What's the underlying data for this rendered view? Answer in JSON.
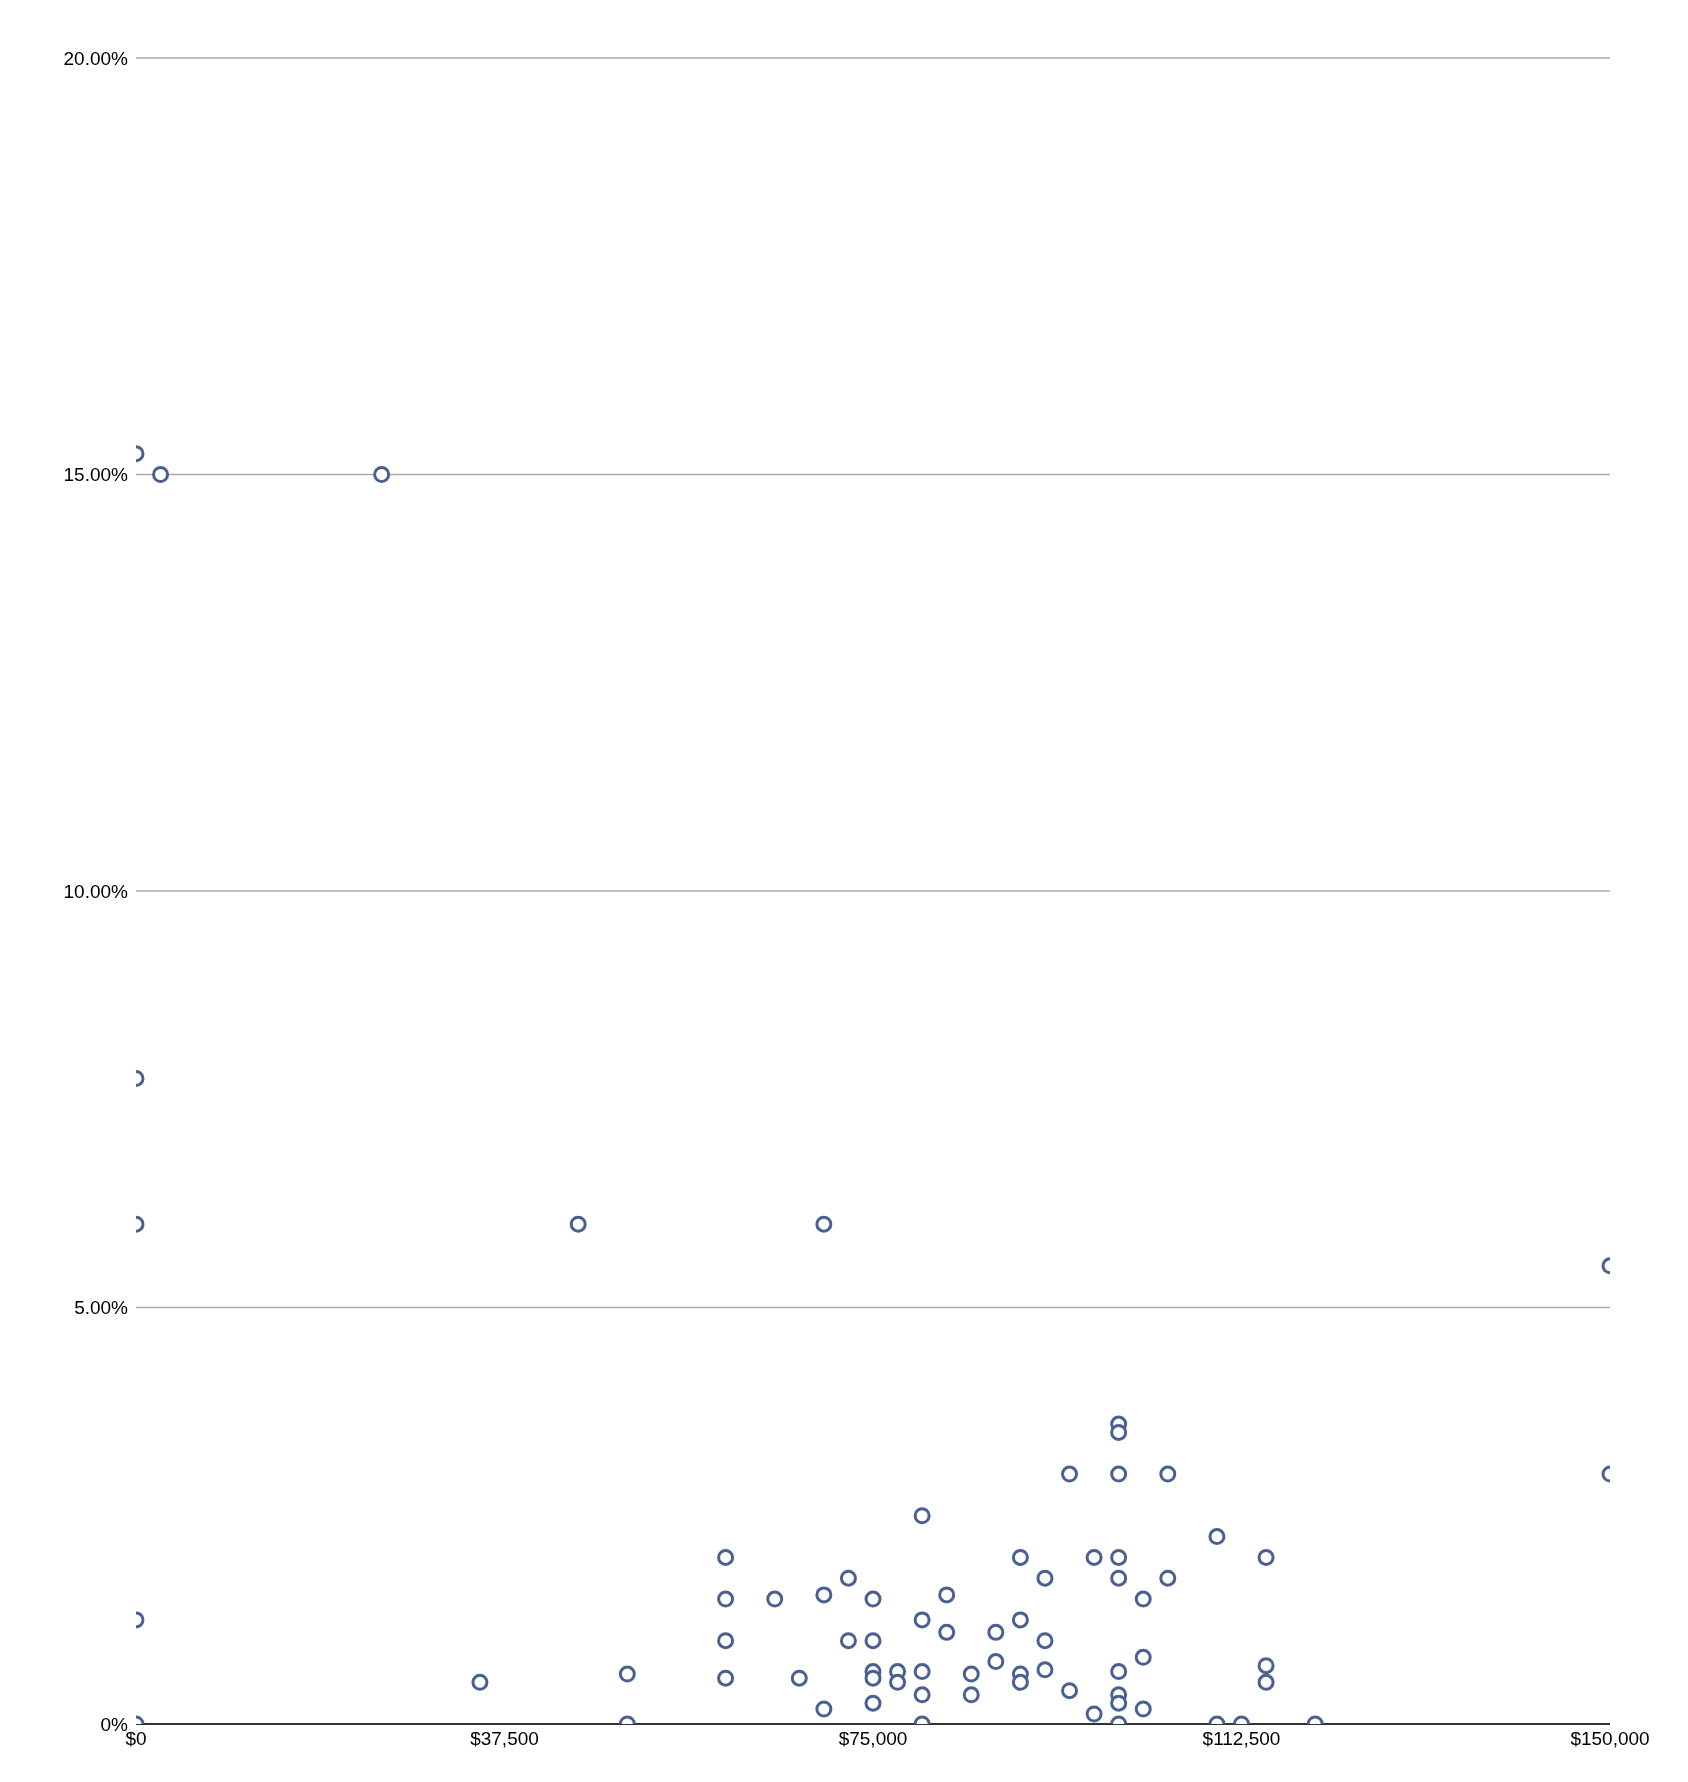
{
  "chart_data": {
    "type": "scatter",
    "x": [
      0,
      2500,
      25000,
      0,
      0,
      45000,
      70000,
      150000,
      150000,
      0,
      0,
      35000,
      50000,
      50000,
      60000,
      60000,
      60000,
      60000,
      65000,
      67500,
      70000,
      70000,
      72500,
      72500,
      75000,
      75000,
      75000,
      75000,
      75000,
      77500,
      77500,
      80000,
      80000,
      80000,
      80000,
      80000,
      82500,
      82500,
      85000,
      85000,
      87500,
      87500,
      90000,
      90000,
      90000,
      90000,
      92500,
      92500,
      92500,
      95000,
      95000,
      97500,
      97500,
      100000,
      100000,
      100000,
      100000,
      100000,
      100000,
      100000,
      100000,
      100000,
      102500,
      102500,
      102500,
      105000,
      105000,
      110000,
      110000,
      112500,
      115000,
      115000,
      115000,
      120000
    ],
    "series": [
      {
        "color": "#4a6090",
        "values": [
          15.25,
          15,
          15,
          7.75,
          6,
          6,
          6,
          5.5,
          3,
          1.25,
          0,
          0.5,
          0.6,
          0,
          2,
          1.5,
          1,
          0.55,
          1.5,
          0.55,
          1.55,
          0.18,
          1.75,
          1,
          1.5,
          1,
          0.63,
          0.55,
          0.25,
          0.63,
          0.5,
          2.5,
          1.25,
          0.63,
          0.35,
          0,
          1.55,
          1.1,
          0.6,
          0.35,
          1.1,
          0.75,
          2,
          1.25,
          0.6,
          0.5,
          1.75,
          1,
          0.65,
          3,
          0.4,
          2,
          0.12,
          3.6,
          3.5,
          3,
          2,
          1.75,
          0.63,
          0.35,
          0.25,
          0,
          1.5,
          0.8,
          0.18,
          3,
          1.75,
          2.25,
          0,
          0,
          2,
          0.7,
          0.5,
          0
        ]
      }
    ],
    "xlim": [
      0,
      150000
    ],
    "xticks": [
      {
        "value": 0,
        "label": "$0"
      },
      {
        "value": 37500,
        "label": "$37,500"
      },
      {
        "value": 75000,
        "label": "$75,000"
      },
      {
        "value": 112500,
        "label": "$112,500"
      },
      {
        "value": 150000,
        "label": "$150,000"
      }
    ],
    "ylim": [
      0,
      20
    ],
    "yticks": [
      {
        "value": 0,
        "label": "0%"
      },
      {
        "value": 5,
        "label": "5.00%"
      },
      {
        "value": 10,
        "label": "10.00%"
      },
      {
        "value": 15,
        "label": "15.00%"
      },
      {
        "value": 20,
        "label": "20.00%"
      }
    ],
    "grid": "y",
    "marker": "circle"
  }
}
